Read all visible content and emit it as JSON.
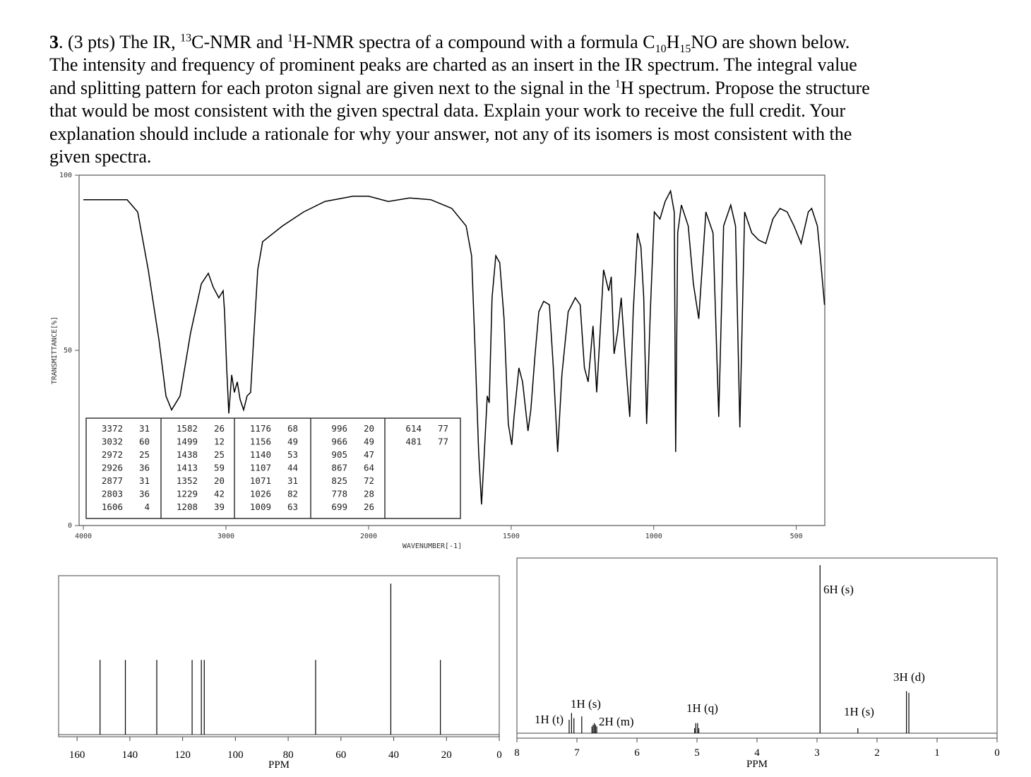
{
  "question": {
    "lines": [
      [
        "3",
        ". (3 pts) The IR, ",
        "13",
        "C-NMR and ",
        "1",
        "H-NMR spectra of a compound with a formula C",
        "10",
        "H",
        "15",
        "NO are shown below."
      ],
      [
        "The intensity and frequency of prominent peaks are charted as an insert in the IR spectrum. The integral value"
      ],
      [
        "and splitting pattern for each proton signal are given next to the signal in the ",
        "1",
        "H spectrum. Propose the structure"
      ],
      [
        "that would be most consistent with the given spectral data. Explain your work to receive the full credit. Your"
      ],
      [
        "explanation should include a rationale for why your answer, not any of its isomers is most consistent with the"
      ],
      [
        "given spectra."
      ]
    ]
  },
  "chart_data": [
    {
      "type": "line",
      "x_label": "WAVENUMBER[-1]",
      "y_label": "TRANSMITTANCE[%]",
      "color": "#000000",
      "xlim": [
        4000,
        400
      ],
      "x_scale_break": 2000,
      "xticks": [
        4000,
        3000,
        2000,
        1500,
        1000,
        500
      ],
      "ylim": [
        0,
        100
      ],
      "yticks": [
        0,
        50,
        100
      ],
      "x": [
        4000,
        3693,
        3619,
        3545,
        3470,
        3421,
        3381,
        3322,
        3248,
        3173,
        3124,
        3089,
        3050,
        3020,
        3010,
        2995,
        2980,
        2960,
        2941,
        2921,
        2901,
        2876,
        2852,
        2827,
        2812,
        2777,
        2743,
        2604,
        2456,
        2307,
        2109,
        2000,
        1931,
        1856,
        1782,
        1708,
        1658,
        1639,
        1626,
        1614,
        1604,
        1594,
        1584,
        1577,
        1567,
        1554,
        1540,
        1525,
        1510,
        1498,
        1490,
        1473,
        1460,
        1441,
        1431,
        1416,
        1403,
        1386,
        1366,
        1352,
        1337,
        1322,
        1300,
        1275,
        1258,
        1243,
        1230,
        1213,
        1200,
        1188,
        1176,
        1158,
        1149,
        1139,
        1127,
        1114,
        1099,
        1084,
        1072,
        1057,
        1045,
        1035,
        1025,
        1012,
        998,
        978,
        960,
        941,
        928,
        923,
        916,
        903,
        879,
        861,
        842,
        817,
        792,
        772,
        755,
        730,
        713,
        698,
        681,
        656,
        632,
        607,
        582,
        557,
        532,
        508,
        483,
        458,
        446,
        426,
        416,
        401
      ],
      "values": [
        93,
        93,
        89.5,
        73,
        53,
        37,
        33,
        37,
        55,
        69,
        72,
        68,
        65,
        67,
        61,
        45,
        32,
        43,
        38,
        41,
        36,
        33,
        37,
        38,
        49,
        73,
        81,
        85.5,
        89.5,
        92.5,
        94,
        94,
        92.5,
        93.5,
        93,
        90.5,
        85.5,
        77,
        49,
        21,
        6,
        21,
        37,
        35,
        65,
        77,
        75,
        59,
        29,
        23,
        31,
        45,
        41,
        27,
        33,
        49,
        61,
        64,
        63,
        45,
        21,
        43,
        61,
        65,
        63,
        45,
        41,
        57,
        38,
        55,
        73,
        67,
        71,
        49,
        55,
        65,
        47,
        31,
        61,
        83.5,
        79.5,
        65,
        29,
        61,
        89.5,
        87.5,
        92.5,
        95.5,
        89.5,
        21,
        83.5,
        91.5,
        85.5,
        69,
        59,
        89.5,
        83.5,
        31,
        85.5,
        91.5,
        85.5,
        28,
        89.5,
        83.5,
        81.5,
        80.5,
        87.5,
        90.5,
        89.5,
        85.5,
        80.5,
        89.5,
        90.5,
        85.5,
        77,
        63
      ],
      "peak_table": [
        [
          [
            3372,
            31
          ],
          [
            3032,
            60
          ],
          [
            2972,
            25
          ],
          [
            2926,
            36
          ],
          [
            2877,
            31
          ],
          [
            2803,
            36
          ],
          [
            1606,
            4
          ]
        ],
        [
          [
            1582,
            26
          ],
          [
            1499,
            12
          ],
          [
            1438,
            25
          ],
          [
            1413,
            59
          ],
          [
            1352,
            20
          ],
          [
            1229,
            42
          ],
          [
            1208,
            39
          ]
        ],
        [
          [
            1176,
            68
          ],
          [
            1156,
            49
          ],
          [
            1140,
            53
          ],
          [
            1107,
            44
          ],
          [
            1071,
            31
          ],
          [
            1026,
            82
          ],
          [
            1009,
            63
          ]
        ],
        [
          [
            996,
            20
          ],
          [
            966,
            49
          ],
          [
            905,
            47
          ],
          [
            867,
            64
          ],
          [
            825,
            72
          ],
          [
            778,
            28
          ],
          [
            699,
            26
          ]
        ],
        [
          [
            614,
            77
          ],
          [
            481,
            77
          ]
        ]
      ]
    },
    {
      "type": "stem",
      "x_label": "PPM",
      "color": "#000000",
      "xlim": [
        167,
        0
      ],
      "xticks": [
        160,
        140,
        120,
        100,
        80,
        60,
        40,
        20,
        0
      ],
      "ylim": [
        0,
        100
      ],
      "x": [
        151.3,
        141.7,
        129.8,
        116.4,
        112.9,
        111.8,
        69.6,
        41.1,
        22.3
      ],
      "values": [
        47,
        47,
        47,
        47,
        47,
        47,
        47,
        95,
        47
      ]
    },
    {
      "type": "stem",
      "x_label": "PPM",
      "color": "#000000",
      "xlim": [
        8,
        0
      ],
      "xticks": [
        8,
        7,
        6,
        5,
        4,
        3,
        2,
        1,
        0
      ],
      "ylim": [
        0,
        100
      ],
      "x": [
        7.13,
        7.09,
        7.05,
        6.92,
        6.75,
        6.73,
        6.71,
        6.69,
        6.67,
        5.04,
        5.02,
        4.99,
        4.97,
        2.95,
        2.32,
        1.51,
        1.47
      ],
      "values": [
        8,
        12,
        9,
        10,
        4,
        5,
        6,
        5,
        4,
        3,
        6,
        6,
        3,
        100,
        3,
        25,
        24
      ],
      "annotations": [
        "1H (t)",
        "1H (s)",
        "2H (m)",
        "1H (q)",
        "6H (s)",
        "1H (s)",
        "3H (d)"
      ]
    }
  ]
}
